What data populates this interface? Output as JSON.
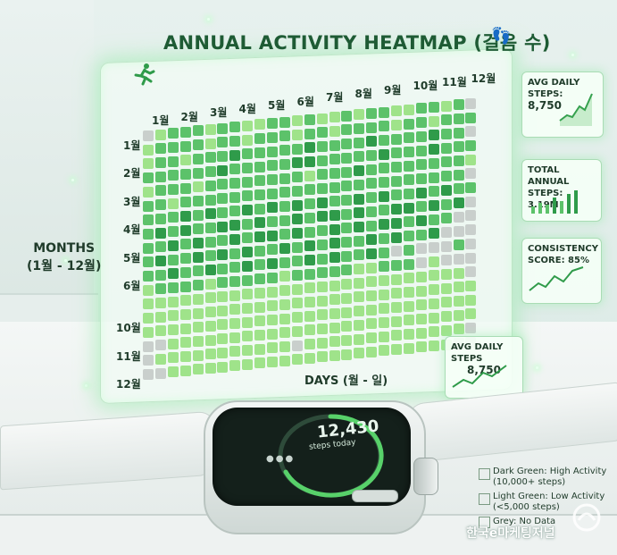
{
  "title": "ANNUAL ACTIVITY HEATMAP (걸음 수)",
  "months_axis_label_line1": "MONTHS",
  "months_axis_label_line2": "(1월 - 12월)",
  "days_axis_label": "DAYS (월 - 일)",
  "column_months": [
    "1월",
    "2월",
    "3월",
    "4월",
    "5월",
    "6월",
    "7월",
    "8월",
    "9월",
    "10월",
    "11월",
    "12월"
  ],
  "row_labels": [
    {
      "label": "1월",
      "row": 0
    },
    {
      "label": "2월",
      "row": 2
    },
    {
      "label": "3월",
      "row": 4
    },
    {
      "label": "4월",
      "row": 6
    },
    {
      "label": "5월",
      "row": 8
    },
    {
      "label": "6월",
      "row": 10
    },
    {
      "label": "10월",
      "row": 13
    },
    {
      "label": "11월",
      "row": 15
    },
    {
      "label": "12월",
      "row": 17
    }
  ],
  "stat_cards": [
    {
      "id": "avg-daily-top",
      "line1": "AVG DAILY",
      "line2": "STEPS:",
      "line3": "8,750"
    },
    {
      "id": "total-annual",
      "line1": "TOTAL ANNUAL",
      "line2": "STEPS: 3.19M",
      "line3": ""
    },
    {
      "id": "consistency",
      "line1": "CONSISTENCY",
      "line2": "SCORE: 85%",
      "line3": ""
    },
    {
      "id": "avg-daily-bottom",
      "line1": "AVG DAILY STEPS",
      "line2": "8,750",
      "line3": ""
    }
  ],
  "watch": {
    "steps": "12,430",
    "subtitle": "steps today"
  },
  "legend": [
    {
      "label": "Dark Green: High Activity",
      "sub": "(10,000+ steps)",
      "color": "#2f9b4a"
    },
    {
      "label": "Light Green: Low Activity",
      "sub": "(<5,000 steps)",
      "color": "#9fe38a"
    },
    {
      "label": "Grey: No Data",
      "sub": "",
      "color": "#c9cfcc"
    }
  ],
  "brand": "한국e마케팅저널",
  "colors": {
    "dark": "#2f9b4a",
    "mid": "#5cc26a",
    "light": "#9fe38a",
    "grey": "#c9cfcc",
    "accent": "#1e5b34"
  },
  "chart_data": {
    "type": "heatmap",
    "title": "ANNUAL ACTIVITY HEATMAP (걸음 수)",
    "xlabel": "DAYS (월 - 일)",
    "ylabel": "MONTHS (1월 - 12월)",
    "levels": [
      "grey",
      "light",
      "mid",
      "dark"
    ],
    "rows": [
      "glmmmlmmllmmlmllmlmmllmmlmg",
      "lmmmmlmmlmmmlmmlmmmmlmmlmmm",
      "lmmlmmmdmmmmmdmmmmdmmmmdmmg",
      "mmmmmmdmmmmmddmmmmmdmmmdmmm",
      "lmmmlmmmmmmmmlmmmdmmmmmmmml",
      "mmlmmmmmmmmmmmmmmmmmmmmmmmg",
      "mmmdmdmmdmdmdmdmmdmdmmdmdmm",
      "mdmdmmddmdmmdmddmdmmddmdmdg",
      "mmdmdmmdmddmdmmdmdmddmdmmgg",
      "mdmmdmdmdmmdmdmdmmdmdmmdggg",
      "mmdmmdmmdmdmmdmdmmdmgmgggmg",
      "lmmmmlmmmmmlmmmmmllmmmglggg",
      "llllllllllllllllllllllllllg",
      "lllllllllllllllllllllllllll",
      "lllllllllllllllllllllllllll",
      "gglllllllllllllllllllllllll",
      "glllllllllllglllllllllllllg",
      "gglllllllllllllllllllllllgg"
    ]
  }
}
